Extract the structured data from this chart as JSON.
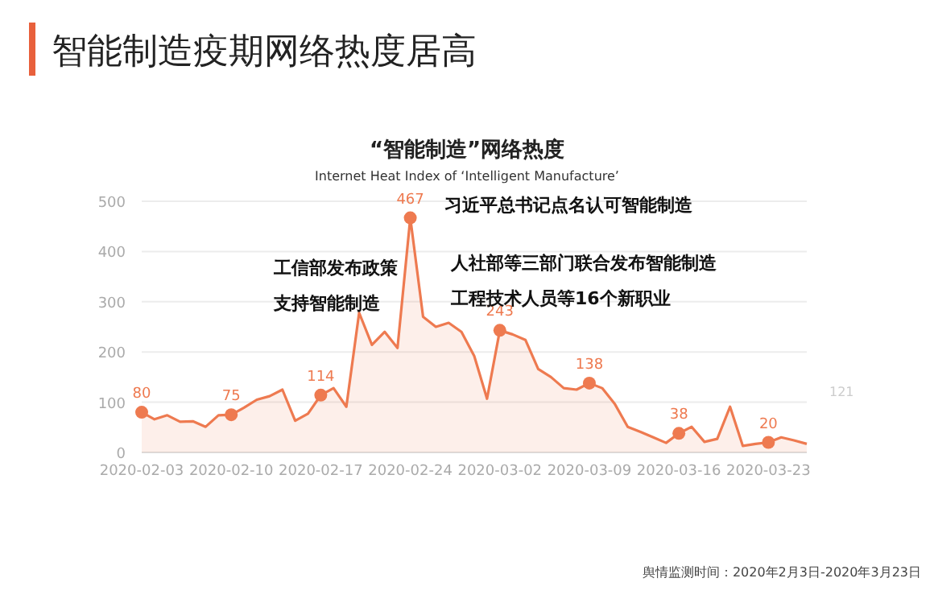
{
  "chart_data": {
    "type": "area",
    "title": "智能制造疫期网络热度居高",
    "subtitle": "“智能制造”网络热度",
    "annotations": [
      "Internet Heat Index of ‘Intelligent Manufacture’",
      "舆情监测时间：2020年2月3日-2020年3月23日",
      "121",
      "习近平总书记点名认可智能制造",
      "工信部发布政策",
      "支持智能制造",
      "人社部等三部门联合发布智能制造",
      "工程技术人员等16个新职业"
    ],
    "x": [
      "2020-02-03",
      "2020-02-04",
      "2020-02-05",
      "2020-02-06",
      "2020-02-07",
      "2020-02-08",
      "2020-02-09",
      "2020-02-10",
      "2020-02-11",
      "2020-02-12",
      "2020-02-13",
      "2020-02-14",
      "2020-02-15",
      "2020-02-16",
      "2020-02-17",
      "2020-02-18",
      "2020-02-19",
      "2020-02-20",
      "2020-02-21",
      "2020-02-22",
      "2020-02-23",
      "2020-02-24",
      "2020-02-25",
      "2020-02-26",
      "2020-02-27",
      "2020-02-28",
      "2020-02-29",
      "2020-03-01",
      "2020-03-02",
      "2020-03-03",
      "2020-03-04",
      "2020-03-05",
      "2020-03-06",
      "2020-03-07",
      "2020-03-08",
      "2020-03-09",
      "2020-03-10",
      "2020-03-11",
      "2020-03-12",
      "2020-03-13",
      "2020-03-14",
      "2020-03-15",
      "2020-03-16",
      "2020-03-17",
      "2020-03-18",
      "2020-03-19",
      "2020-03-20",
      "2020-03-21",
      "2020-03-22",
      "2020-03-23",
      "2020-03-24",
      "2020-03-25",
      "2020-03-26"
    ],
    "series": [
      {
        "color": "#ee7a50",
        "values": [
          80,
          66,
          74,
          61,
          62,
          51,
          74,
          75,
          89,
          105,
          112,
          125,
          63,
          77,
          114,
          128,
          91,
          278,
          214,
          240,
          208,
          467,
          270,
          250,
          258,
          240,
          192,
          107,
          243,
          235,
          224,
          166,
          150,
          128,
          125,
          138,
          128,
          96,
          51,
          41,
          30,
          19,
          38,
          51,
          21,
          27,
          91,
          13,
          17,
          20,
          30,
          24,
          17
        ],
        "value_labels": [
          "80",
          null,
          null,
          null,
          null,
          null,
          null,
          "75",
          null,
          null,
          null,
          null,
          null,
          null,
          "114",
          null,
          null,
          null,
          null,
          null,
          null,
          "467",
          null,
          null,
          null,
          null,
          null,
          null,
          "243",
          null,
          null,
          null,
          null,
          null,
          null,
          "138",
          null,
          null,
          null,
          null,
          null,
          null,
          "38",
          null,
          null,
          null,
          null,
          null,
          null,
          "20",
          null,
          null,
          null
        ]
      }
    ],
    "xlim": [
      "2020-02-03",
      "2020-03-26"
    ],
    "xticks": [
      "2020-02-03",
      "2020-02-10",
      "2020-02-17",
      "2020-02-24",
      "2020-03-02",
      "2020-03-09",
      "2020-03-16",
      "2020-03-23"
    ],
    "ylim": [
      0,
      500
    ],
    "yticks": [
      0,
      100,
      200,
      300,
      400,
      500
    ],
    "grid": "y"
  }
}
